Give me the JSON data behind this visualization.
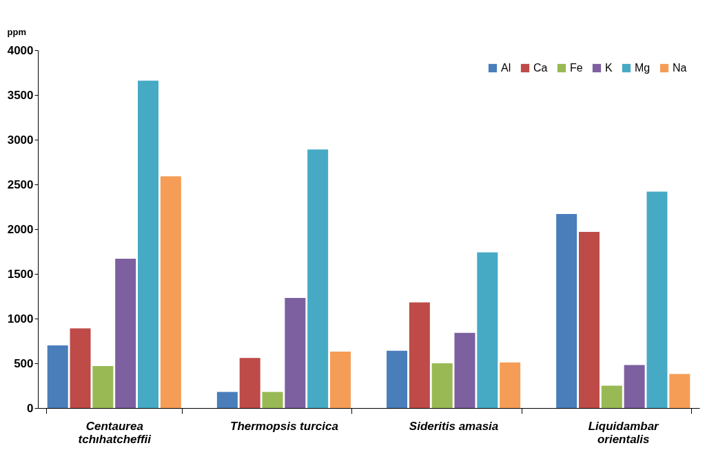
{
  "chart_data": {
    "type": "bar",
    "ylabel": "ppm",
    "categories": [
      "Centaurea\ntchıhatcheffii",
      "Thermopsis turcica",
      "Sideritis amasia",
      "Liquidambar\norientalis"
    ],
    "series": [
      {
        "name": "Al",
        "color": "#4a7ebb",
        "values": [
          700,
          180,
          640,
          2170
        ]
      },
      {
        "name": "Ca",
        "color": "#be4b48",
        "values": [
          890,
          560,
          1180,
          1970
        ]
      },
      {
        "name": "Fe",
        "color": "#98b954",
        "values": [
          470,
          180,
          500,
          250
        ]
      },
      {
        "name": "K",
        "color": "#7d60a0",
        "values": [
          1670,
          1230,
          840,
          480
        ]
      },
      {
        "name": "Mg",
        "color": "#46aac5",
        "values": [
          3660,
          2890,
          1740,
          2420
        ]
      },
      {
        "name": "Na",
        "color": "#f59d56",
        "values": [
          2590,
          630,
          510,
          380
        ]
      }
    ],
    "ylim": [
      0,
      4000
    ],
    "yticks": [
      0,
      500,
      1000,
      1500,
      2000,
      2500,
      3000,
      3500,
      4000
    ],
    "grid": false,
    "legend": "top right"
  }
}
